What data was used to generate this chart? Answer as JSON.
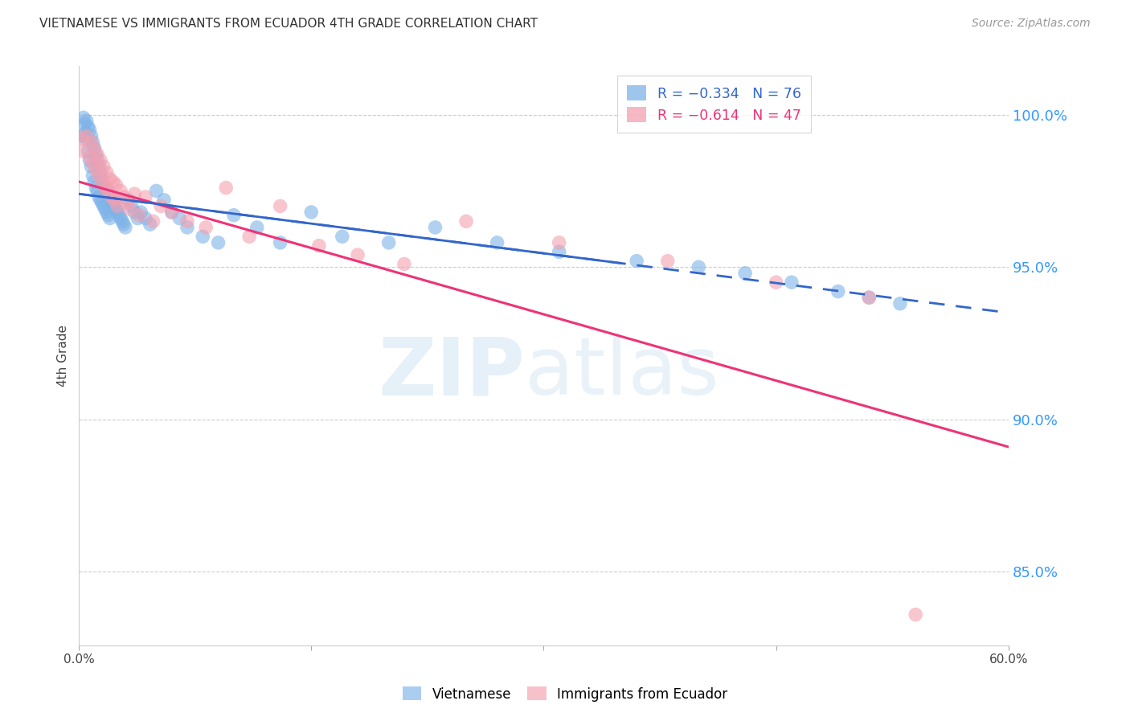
{
  "title": "VIETNAMESE VS IMMIGRANTS FROM ECUADOR 4TH GRADE CORRELATION CHART",
  "source": "Source: ZipAtlas.com",
  "ylabel": "4th Grade",
  "ytick_labels": [
    "85.0%",
    "90.0%",
    "95.0%",
    "100.0%"
  ],
  "ytick_values": [
    0.85,
    0.9,
    0.95,
    1.0
  ],
  "xlim": [
    0.0,
    0.6
  ],
  "ylim": [
    0.826,
    1.016
  ],
  "blue_color": "#7EB3E8",
  "pink_color": "#F4A0B0",
  "blue_line_color": "#3366CC",
  "pink_line_color": "#EE3377",
  "blue_scatter_x": [
    0.002,
    0.003,
    0.004,
    0.004,
    0.005,
    0.005,
    0.006,
    0.006,
    0.007,
    0.007,
    0.008,
    0.008,
    0.009,
    0.009,
    0.01,
    0.01,
    0.011,
    0.011,
    0.012,
    0.012,
    0.013,
    0.013,
    0.014,
    0.014,
    0.015,
    0.015,
    0.016,
    0.016,
    0.017,
    0.017,
    0.018,
    0.018,
    0.019,
    0.019,
    0.02,
    0.02,
    0.021,
    0.022,
    0.023,
    0.024,
    0.025,
    0.026,
    0.027,
    0.028,
    0.029,
    0.03,
    0.032,
    0.034,
    0.036,
    0.038,
    0.04,
    0.043,
    0.046,
    0.05,
    0.055,
    0.06,
    0.065,
    0.07,
    0.08,
    0.09,
    0.1,
    0.115,
    0.13,
    0.15,
    0.17,
    0.2,
    0.23,
    0.27,
    0.31,
    0.36,
    0.4,
    0.43,
    0.46,
    0.49,
    0.51,
    0.53
  ],
  "blue_scatter_y": [
    0.993,
    0.999,
    0.997,
    0.994,
    0.998,
    0.992,
    0.996,
    0.988,
    0.995,
    0.985,
    0.993,
    0.983,
    0.991,
    0.98,
    0.989,
    0.978,
    0.987,
    0.976,
    0.985,
    0.975,
    0.983,
    0.973,
    0.981,
    0.972,
    0.979,
    0.971,
    0.977,
    0.97,
    0.976,
    0.969,
    0.975,
    0.968,
    0.974,
    0.967,
    0.973,
    0.966,
    0.972,
    0.971,
    0.97,
    0.969,
    0.968,
    0.967,
    0.966,
    0.965,
    0.964,
    0.963,
    0.972,
    0.97,
    0.968,
    0.966,
    0.968,
    0.966,
    0.964,
    0.975,
    0.972,
    0.968,
    0.966,
    0.963,
    0.96,
    0.958,
    0.967,
    0.963,
    0.958,
    0.968,
    0.96,
    0.958,
    0.963,
    0.958,
    0.955,
    0.952,
    0.95,
    0.948,
    0.945,
    0.942,
    0.94,
    0.938
  ],
  "pink_scatter_x": [
    0.002,
    0.003,
    0.005,
    0.007,
    0.008,
    0.009,
    0.01,
    0.011,
    0.012,
    0.013,
    0.014,
    0.015,
    0.016,
    0.017,
    0.018,
    0.019,
    0.02,
    0.021,
    0.022,
    0.023,
    0.024,
    0.025,
    0.027,
    0.029,
    0.031,
    0.033,
    0.036,
    0.039,
    0.043,
    0.048,
    0.053,
    0.06,
    0.07,
    0.082,
    0.095,
    0.11,
    0.13,
    0.155,
    0.18,
    0.21,
    0.25,
    0.31,
    0.38,
    0.45,
    0.51,
    0.54
  ],
  "pink_scatter_y": [
    0.992,
    0.988,
    0.993,
    0.986,
    0.991,
    0.984,
    0.989,
    0.982,
    0.987,
    0.98,
    0.985,
    0.978,
    0.983,
    0.976,
    0.981,
    0.975,
    0.979,
    0.973,
    0.978,
    0.972,
    0.977,
    0.97,
    0.975,
    0.973,
    0.971,
    0.969,
    0.974,
    0.967,
    0.973,
    0.965,
    0.97,
    0.968,
    0.965,
    0.963,
    0.976,
    0.96,
    0.97,
    0.957,
    0.954,
    0.951,
    0.965,
    0.958,
    0.952,
    0.945,
    0.94,
    0.836
  ],
  "blue_line_intercept": 0.974,
  "blue_line_slope": -0.065,
  "pink_line_intercept": 0.978,
  "pink_line_slope": -0.145
}
